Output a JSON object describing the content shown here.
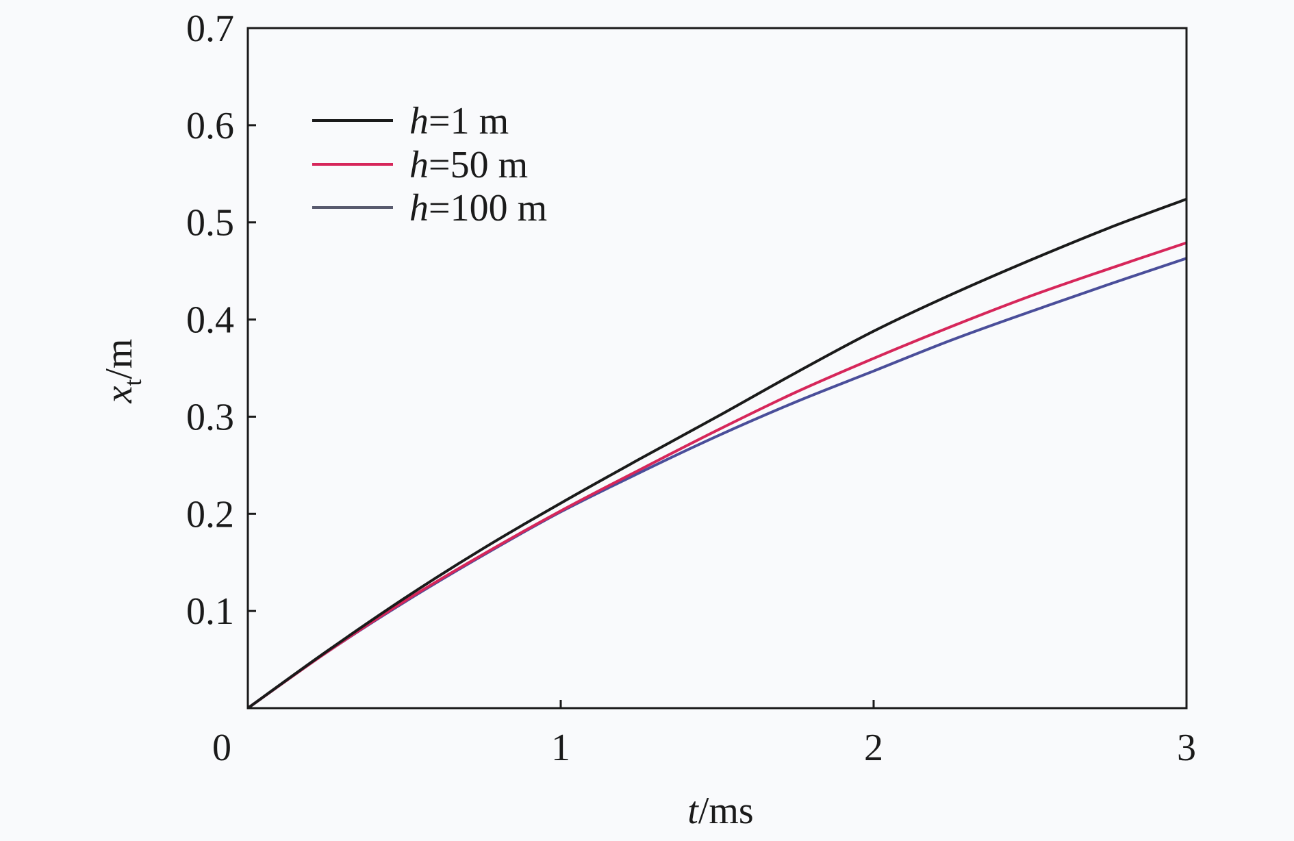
{
  "chart_data": {
    "type": "line",
    "xlabel": {
      "var": "t",
      "unit": "/ms"
    },
    "ylabel": {
      "var": "x",
      "sub": "t",
      "unit": "/m"
    },
    "xlim": [
      0,
      3
    ],
    "ylim": [
      0,
      0.7
    ],
    "x_ticks": [
      0,
      1,
      2,
      3
    ],
    "x_tick_labels": [
      "0",
      "1",
      "2",
      "3"
    ],
    "y_ticks": [
      0.1,
      0.2,
      0.3,
      0.4,
      0.5,
      0.6,
      0.7
    ],
    "y_tick_labels": [
      "0.1",
      "0.2",
      "0.3",
      "0.4",
      "0.5",
      "0.6",
      "0.7"
    ],
    "grid": false,
    "legend_position": "top-left",
    "x": [
      0,
      0.25,
      0.5,
      0.75,
      1.0,
      1.25,
      1.5,
      1.75,
      2.0,
      2.25,
      2.5,
      2.75,
      3.0
    ],
    "series": [
      {
        "name_var": "h",
        "name_rest": "=1 m",
        "color": "#1a1a1a",
        "values": [
          0,
          0.058,
          0.113,
          0.164,
          0.211,
          0.256,
          0.3,
          0.345,
          0.388,
          0.426,
          0.461,
          0.494,
          0.524
        ]
      },
      {
        "name_var": "h",
        "name_rest": "=50 m",
        "color": "#d6265a",
        "values": [
          0,
          0.057,
          0.11,
          0.158,
          0.203,
          0.245,
          0.286,
          0.325,
          0.36,
          0.393,
          0.424,
          0.452,
          0.479
        ]
      },
      {
        "name_var": "h",
        "name_rest": "=100 m",
        "color": "#4a4e9a",
        "values": [
          0,
          0.057,
          0.109,
          0.157,
          0.202,
          0.242,
          0.28,
          0.315,
          0.347,
          0.379,
          0.408,
          0.436,
          0.463
        ]
      }
    ],
    "legend_line_colors": [
      "#1a1a1a",
      "#d6265a",
      "#585a6e"
    ]
  }
}
